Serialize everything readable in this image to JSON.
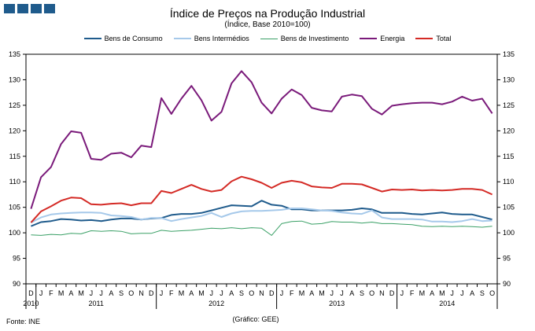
{
  "header": {
    "title": "Índice de Preços na Produção Industrial",
    "subtitle": "(Índice, Base 2010=100)"
  },
  "footer": {
    "source": "Fonte:  INE",
    "credit": "(Gráfico:  GEE)"
  },
  "chart_data": {
    "type": "line",
    "x_month_labels": [
      "D",
      "J",
      "F",
      "M",
      "A",
      "M",
      "J",
      "J",
      "A",
      "S",
      "O",
      "N",
      "D",
      "J",
      "F",
      "M",
      "A",
      "M",
      "J",
      "J",
      "A",
      "S",
      "O",
      "N",
      "D",
      "J",
      "F",
      "M",
      "A",
      "M",
      "J",
      "J",
      "A",
      "S",
      "O",
      "N",
      "D",
      "J",
      "F",
      "M",
      "A",
      "M",
      "J",
      "J",
      "A",
      "S",
      "O"
    ],
    "year_labels": [
      {
        "label": "2010",
        "month_index": 0
      },
      {
        "label": "2011",
        "month_index": 6.5
      },
      {
        "label": "2012",
        "month_index": 18.5
      },
      {
        "label": "2013",
        "month_index": 30.5
      },
      {
        "label": "2014",
        "month_index": 41.5
      }
    ],
    "ylim": [
      90,
      135
    ],
    "y_ticks": [
      90,
      95,
      100,
      105,
      110,
      115,
      120,
      125,
      130,
      135
    ],
    "legend_position": "top",
    "series": [
      {
        "name": "Bens de Consumo",
        "color": "#1f5b8c",
        "width": 2,
        "values": [
          101.3,
          102.1,
          102.3,
          102.7,
          102.6,
          102.4,
          102.5,
          102.3,
          102.6,
          102.8,
          102.8,
          102.6,
          102.8,
          102.9,
          103.5,
          103.7,
          103.7,
          103.9,
          104.4,
          104.9,
          105.4,
          105.3,
          105.2,
          106.3,
          105.5,
          105.3,
          104.6,
          104.6,
          104.4,
          104.4,
          104.4,
          104.4,
          104.5,
          104.8,
          104.6,
          103.9,
          103.9,
          103.9,
          103.7,
          103.6,
          103.8,
          104.0,
          103.7,
          103.6,
          103.6,
          103.1,
          102.6
        ]
      },
      {
        "name": "Bens Intermédios",
        "color": "#a6c9ea",
        "width": 2,
        "values": [
          102.0,
          103.0,
          103.6,
          103.8,
          103.9,
          104.0,
          104.0,
          103.9,
          103.4,
          103.3,
          103.1,
          102.6,
          102.9,
          102.9,
          102.3,
          102.7,
          103.0,
          103.3,
          103.9,
          103.1,
          103.8,
          104.2,
          104.3,
          104.3,
          104.4,
          104.5,
          104.8,
          104.8,
          104.6,
          104.4,
          104.3,
          104.0,
          103.8,
          103.7,
          104.4,
          103.0,
          102.7,
          102.7,
          102.7,
          102.6,
          102.2,
          102.2,
          102.1,
          102.3,
          102.7,
          102.3,
          102.4
        ]
      },
      {
        "name": "Bens de Investimento",
        "color": "#3aa066",
        "width": 1,
        "values": [
          99.6,
          99.5,
          99.7,
          99.6,
          99.9,
          99.8,
          100.4,
          100.3,
          100.4,
          100.3,
          99.8,
          99.9,
          99.9,
          100.5,
          100.3,
          100.4,
          100.5,
          100.7,
          100.9,
          100.8,
          101.0,
          100.8,
          101.0,
          100.9,
          99.5,
          101.8,
          102.2,
          102.3,
          101.7,
          101.8,
          102.2,
          102.1,
          102.1,
          101.9,
          102.1,
          101.8,
          101.8,
          101.7,
          101.6,
          101.3,
          101.2,
          101.3,
          101.2,
          101.3,
          101.2,
          101.1,
          101.3
        ]
      },
      {
        "name": "Energia",
        "color": "#7a1a7a",
        "width": 2,
        "values": [
          104.7,
          110.9,
          112.9,
          117.4,
          119.9,
          119.6,
          114.5,
          114.3,
          115.5,
          115.7,
          114.8,
          117.1,
          116.8,
          126.4,
          123.3,
          126.3,
          128.8,
          126.0,
          122.0,
          123.7,
          129.3,
          131.7,
          129.5,
          125.5,
          123.4,
          126.3,
          128.1,
          127.0,
          124.5,
          124.0,
          123.8,
          126.7,
          127.1,
          126.8,
          124.3,
          123.2,
          124.9,
          125.2,
          125.4,
          125.5,
          125.5,
          125.2,
          125.7,
          126.7,
          125.9,
          126.3,
          123.4
        ]
      },
      {
        "name": "Total",
        "color": "#d42a25",
        "width": 2,
        "values": [
          102.0,
          104.2,
          105.2,
          106.3,
          106.9,
          106.8,
          105.6,
          105.5,
          105.7,
          105.8,
          105.4,
          105.8,
          105.8,
          108.2,
          107.8,
          108.6,
          109.4,
          108.6,
          108.1,
          108.4,
          110.1,
          111.0,
          110.5,
          109.8,
          108.8,
          109.8,
          110.2,
          109.9,
          109.1,
          108.9,
          108.8,
          109.6,
          109.6,
          109.5,
          108.8,
          108.1,
          108.5,
          108.4,
          108.5,
          108.3,
          108.4,
          108.3,
          108.4,
          108.6,
          108.6,
          108.4,
          107.5
        ]
      }
    ]
  }
}
